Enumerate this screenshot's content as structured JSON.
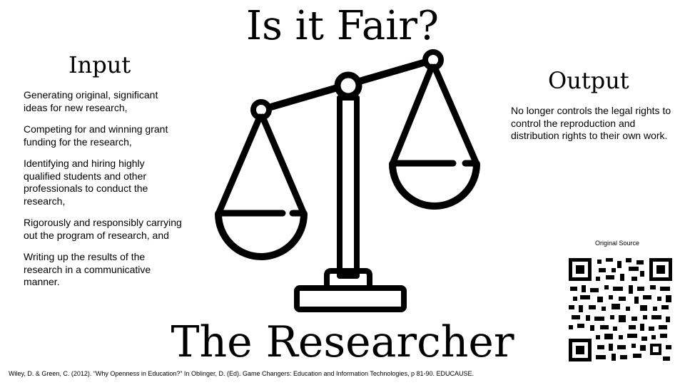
{
  "slide": {
    "title": "Is it Fair?",
    "subtitle": "The Researcher",
    "input": {
      "heading": "Input",
      "items": [
        "Generating original, significant ideas for new research,",
        "Competing for and winning grant funding for the research,",
        "Identifying and hiring highly qualified students and other professionals to conduct the research,",
        "Rigorously and responsibly carrying out the program of research, and",
        "Writing up the results of the research in a communicative manner."
      ]
    },
    "output": {
      "heading": "Output",
      "text": "No longer controls the legal rights to control the reproduction and distribution rights to their own work."
    },
    "source": {
      "label": "Original Source"
    },
    "citation": "Wiley, D. & Green, C. (2012). “Why Openness in Education?” In Oblinger, D. (Ed). Game Changers: Education and Information Technologies, p 81-90. EDUCAUSE."
  },
  "icons": {
    "scale": "balance-scale-icon",
    "qr": "qr-code-icon"
  },
  "colors": {
    "background": "#ffffff",
    "foreground": "#000000"
  }
}
